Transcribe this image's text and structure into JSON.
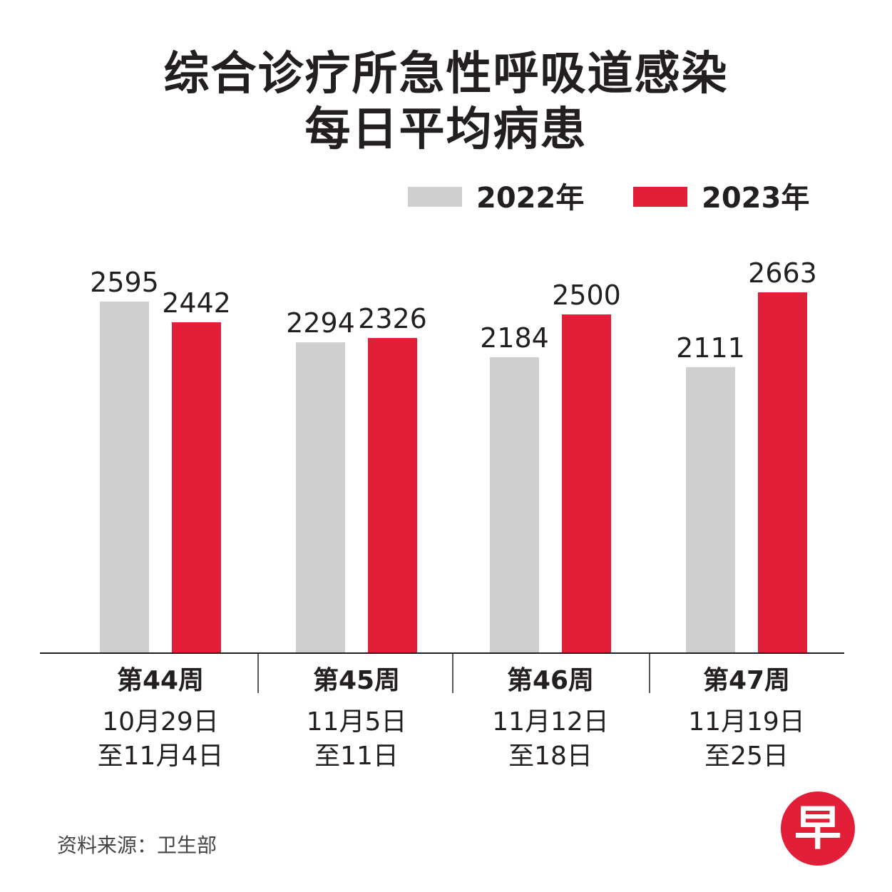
{
  "title_line1": "综合诊疗所急性呼吸道感染",
  "title_line2": "每日平均病患",
  "legend": [
    {
      "label": "2022年",
      "color": "#cfcfcf"
    },
    {
      "label": "2023年",
      "color": "#e31e38"
    }
  ],
  "source": "资料来源：卫生部",
  "logo_text": "早",
  "chart_data": {
    "type": "bar",
    "categories": [
      "第44周",
      "第45周",
      "第46周",
      "第47周"
    ],
    "date_lines": [
      [
        "10月29日",
        "至11月4日"
      ],
      [
        "11月5日",
        "至11日"
      ],
      [
        "11月12日",
        "至18日"
      ],
      [
        "11月19日",
        "至25日"
      ]
    ],
    "series": [
      {
        "name": "2022年",
        "values": [
          2595,
          2294,
          2184,
          2111
        ],
        "color": "#cfcfcf"
      },
      {
        "name": "2023年",
        "values": [
          2442,
          2326,
          2500,
          2663
        ],
        "color": "#e31e38"
      }
    ],
    "ylim": [
      0,
      2663
    ],
    "grid": false,
    "legend_position": "top-right"
  }
}
